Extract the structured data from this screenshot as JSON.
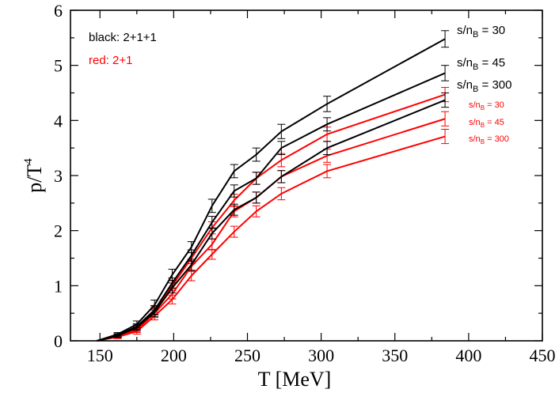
{
  "chart_data": {
    "type": "line",
    "xlabel": "T [MeV]",
    "ylabel": "p/T",
    "ylabel_sup": "4",
    "xlim": [
      130,
      450
    ],
    "ylim": [
      0,
      6
    ],
    "xticks": [
      150,
      200,
      250,
      300,
      350,
      400,
      450
    ],
    "yticks": [
      0,
      1,
      2,
      3,
      4,
      5,
      6
    ],
    "legend_notes": [
      {
        "text": "black: 2+1+1",
        "color": "#000000"
      },
      {
        "text": "red: 2+1",
        "color": "#ff0000"
      }
    ],
    "colors": {
      "black": "#000000",
      "red": "#ff0000"
    },
    "series": [
      {
        "group": "black",
        "label_main": "s/n",
        "label_sub": "B",
        "label_tail": " = 30",
        "x": [
          148,
          162,
          175,
          187,
          199,
          212,
          226,
          241,
          256,
          273,
          304,
          384
        ],
        "y": [
          0.0,
          0.12,
          0.3,
          0.65,
          1.2,
          1.7,
          2.45,
          3.08,
          3.38,
          3.8,
          4.3,
          5.48
        ],
        "err": [
          0.0,
          0.03,
          0.06,
          0.09,
          0.1,
          0.1,
          0.12,
          0.12,
          0.12,
          0.13,
          0.14,
          0.15
        ]
      },
      {
        "group": "black",
        "label_main": "s/n",
        "label_sub": "B",
        "label_tail": " = 45",
        "x": [
          148,
          162,
          175,
          187,
          199,
          212,
          226,
          241,
          256,
          273,
          304,
          384
        ],
        "y": [
          0.0,
          0.1,
          0.26,
          0.56,
          1.05,
          1.55,
          2.15,
          2.72,
          2.95,
          3.5,
          3.93,
          4.86
        ],
        "err": [
          0.0,
          0.03,
          0.05,
          0.08,
          0.09,
          0.1,
          0.11,
          0.11,
          0.11,
          0.12,
          0.12,
          0.14
        ]
      },
      {
        "group": "black",
        "label_main": "s/n",
        "label_sub": "B",
        "label_tail": " = 300",
        "x": [
          148,
          162,
          175,
          187,
          199,
          212,
          226,
          241,
          256,
          273,
          304,
          384
        ],
        "y": [
          0.0,
          0.09,
          0.24,
          0.52,
          0.96,
          1.38,
          1.95,
          2.38,
          2.6,
          2.98,
          3.5,
          4.37
        ],
        "err": [
          0.0,
          0.03,
          0.05,
          0.08,
          0.09,
          0.1,
          0.1,
          0.1,
          0.1,
          0.11,
          0.12,
          0.13
        ]
      },
      {
        "group": "red",
        "label_main": "s/n",
        "label_sub": "B",
        "label_tail": " = 30",
        "x": [
          148,
          162,
          175,
          187,
          199,
          212,
          226,
          241,
          256,
          273,
          304,
          384
        ],
        "y": [
          0.0,
          0.1,
          0.22,
          0.55,
          1.0,
          1.5,
          2.05,
          2.55,
          2.95,
          3.28,
          3.75,
          4.47
        ],
        "err": [
          0.0,
          0.03,
          0.05,
          0.08,
          0.09,
          0.1,
          0.11,
          0.11,
          0.11,
          0.12,
          0.13,
          0.13
        ]
      },
      {
        "group": "red",
        "label_main": "s/n",
        "label_sub": "B",
        "label_tail": " = 45",
        "x": [
          148,
          162,
          175,
          187,
          199,
          212,
          226,
          241,
          256,
          273,
          304,
          384
        ],
        "y": [
          0.0,
          0.08,
          0.2,
          0.5,
          0.85,
          1.35,
          1.75,
          2.35,
          2.6,
          2.98,
          3.36,
          4.03
        ],
        "err": [
          0.0,
          0.03,
          0.05,
          0.08,
          0.09,
          0.09,
          0.1,
          0.1,
          0.1,
          0.11,
          0.12,
          0.13
        ]
      },
      {
        "group": "red",
        "label_main": "s/n",
        "label_sub": "B",
        "label_tail": " = 300",
        "x": [
          148,
          162,
          175,
          187,
          199,
          212,
          226,
          241,
          256,
          273,
          304,
          384
        ],
        "y": [
          0.0,
          0.07,
          0.17,
          0.45,
          0.75,
          1.18,
          1.57,
          1.98,
          2.35,
          2.67,
          3.08,
          3.71
        ],
        "err": [
          0.0,
          0.03,
          0.05,
          0.07,
          0.08,
          0.09,
          0.09,
          0.1,
          0.1,
          0.11,
          0.12,
          0.13
        ]
      }
    ]
  }
}
